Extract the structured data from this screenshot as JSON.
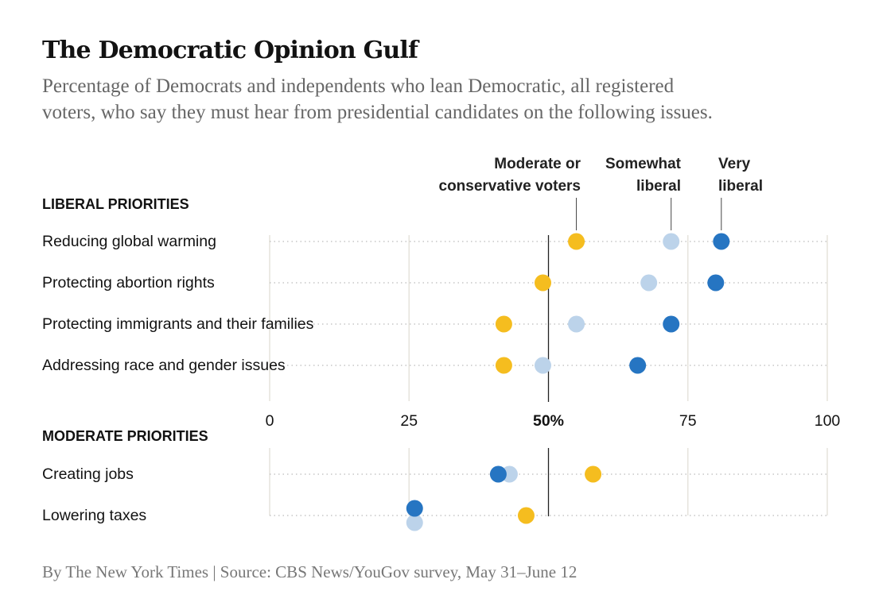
{
  "header": {
    "title": "The Democratic Opinion Gulf",
    "subtitle_lines": [
      "Percentage of Democrats and independents who lean Democratic, all registered",
      "voters, who say they must hear from presidential candidates on the following issues."
    ]
  },
  "footer": {
    "source": "By The New York Times | Source: CBS News/YouGov survey, May 31–June 12"
  },
  "colors": {
    "moderate_or_conservative": "#f5bd1f",
    "somewhat_liberal": "#bcd3ea",
    "very_liberal": "#2675c2",
    "reference_line": "#222222",
    "grid": "#e6e3dc",
    "dots": "#bbbbbb"
  },
  "chart_data": {
    "type": "scatter",
    "x_axis": {
      "range": [
        0,
        100
      ],
      "ticks": [
        0,
        25,
        50,
        75,
        100
      ],
      "tick_labels": [
        "0",
        "25",
        "50%",
        "75",
        "100"
      ],
      "highlight_tick": 50
    },
    "reference_line_x": 50,
    "series": [
      {
        "key": "mod",
        "name_lines": [
          "Moderate or",
          "conservative voters"
        ],
        "color": "#f5bd1f"
      },
      {
        "key": "som",
        "name_lines": [
          "Somewhat",
          "liberal"
        ],
        "color": "#bcd3ea"
      },
      {
        "key": "very",
        "name_lines": [
          "Very",
          "liberal"
        ],
        "color": "#2675c2"
      }
    ],
    "groups": [
      {
        "label": "LIBERAL PRIORITIES",
        "items": [
          {
            "label": "Reducing global warming",
            "mod": 55,
            "som": 72,
            "very": 81
          },
          {
            "label": "Protecting abortion rights",
            "mod": 49,
            "som": 68,
            "very": 80
          },
          {
            "label": "Protecting immigrants and their families",
            "mod": 42,
            "som": 55,
            "very": 72
          },
          {
            "label": "Addressing race and gender issues",
            "mod": 42,
            "som": 49,
            "very": 66
          }
        ]
      },
      {
        "label": "MODERATE PRIORITIES",
        "items": [
          {
            "label": "Creating jobs",
            "mod": 58,
            "som": 43,
            "very": 41
          },
          {
            "label": "Lowering taxes",
            "mod": 46,
            "som": 26,
            "very": 26
          }
        ]
      }
    ]
  }
}
